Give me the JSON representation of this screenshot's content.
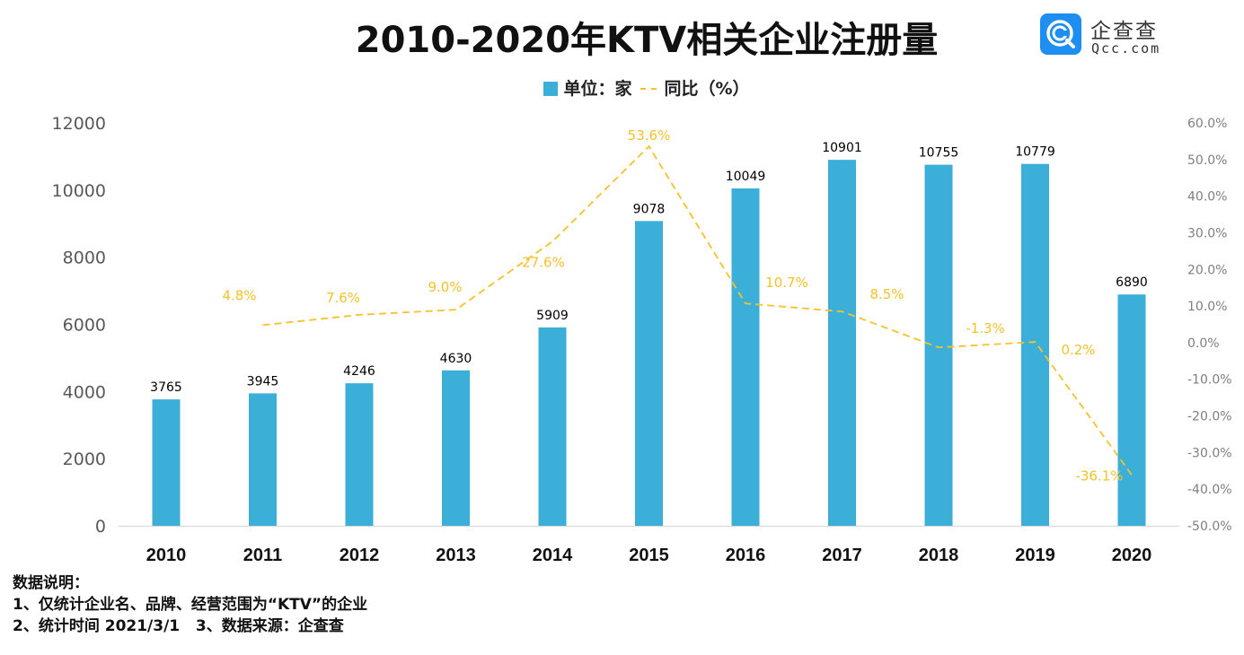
{
  "title": "2010-2020年KTV相关企业注册量",
  "legend": {
    "bar_label": "单位：家",
    "line_label": "同比（%）"
  },
  "logo": {
    "icon": "qcc-magnifier-logo-icon",
    "name_cn": "企查查",
    "name_en": "Qcc.com",
    "color": "#1E8FF0"
  },
  "notes": {
    "heading": "数据说明：",
    "line1": "1、仅统计企业名、品牌、经营范围为“KTV”的企业",
    "line2": "2、统计时间 2021/3/1   3、数据来源：企查查"
  },
  "chart_data": {
    "type": "bar",
    "title": "2010-2020年KTV相关企业注册量",
    "xlabel": "",
    "ylabel": "",
    "categories": [
      "2010",
      "2011",
      "2012",
      "2013",
      "2014",
      "2015",
      "2016",
      "2017",
      "2018",
      "2019",
      "2020"
    ],
    "series": [
      {
        "name": "单位：家",
        "type": "bar",
        "axis": "left",
        "color": "#3BAFD8",
        "values": [
          3765,
          3945,
          4246,
          4630,
          5909,
          9078,
          10049,
          10901,
          10755,
          10779,
          6890
        ],
        "labels": [
          "3765",
          "3945",
          "4246",
          "4630",
          "5909",
          "9078",
          "10049",
          "10901",
          "10755",
          "10779",
          "6890"
        ]
      },
      {
        "name": "同比（%）",
        "type": "line",
        "style": "dashed",
        "axis": "right",
        "color": "#F5C22A",
        "values": [
          null,
          4.8,
          7.6,
          9.0,
          27.6,
          53.6,
          10.7,
          8.5,
          -1.3,
          0.2,
          -36.1
        ],
        "labels": [
          "",
          "4.8%",
          "7.6%",
          "9.0%",
          "27.6%",
          "53.6%",
          "10.7%",
          "8.5%",
          "-1.3%",
          "0.2%",
          "-36.1%"
        ]
      }
    ],
    "y_left": {
      "range": [
        0,
        12000
      ],
      "ticks": [
        0,
        2000,
        4000,
        6000,
        8000,
        10000,
        12000
      ],
      "tick_labels": [
        "0",
        "2000",
        "4000",
        "6000",
        "8000",
        "10000",
        "12000"
      ]
    },
    "y_right": {
      "range": [
        -50,
        60
      ],
      "ticks": [
        60,
        50,
        40,
        30,
        20,
        10,
        0,
        -10,
        -20,
        -30,
        -40,
        -50
      ],
      "tick_labels": [
        "60.0%",
        "50.0%",
        "40.0%",
        "30.0%",
        "20.0%",
        "10.0%",
        "0.0%",
        "-10.0%",
        "-20.0%",
        "-30.0%",
        "-40.0%",
        "-50.0%"
      ]
    },
    "grid": false,
    "legend_position": "top-center"
  }
}
